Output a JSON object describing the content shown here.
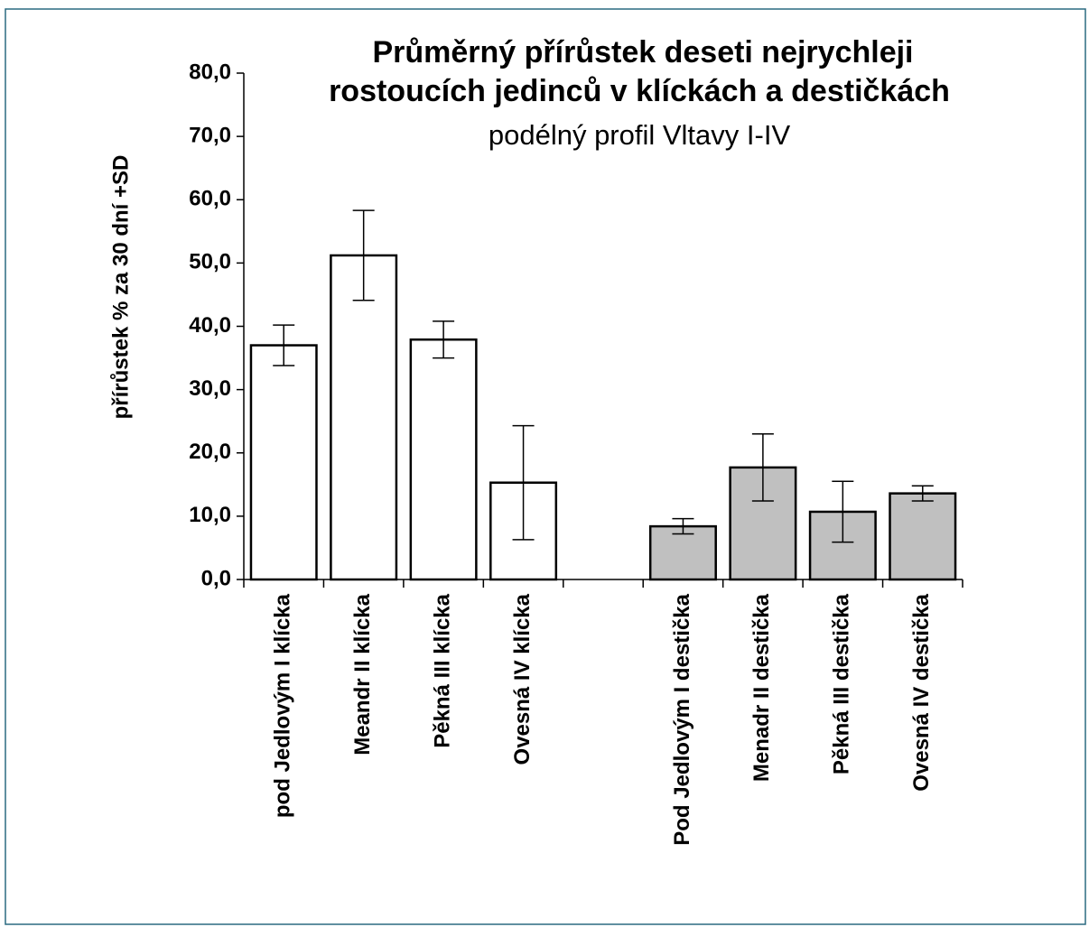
{
  "chart_data": {
    "type": "bar",
    "title": [
      "Průměrný přírůstek deseti nejrychleji",
      "rostoucích jedinců v klíckách a destičkách"
    ],
    "subtitle": "podélný profil Vltavy I-IV",
    "y_label": "přírůstek %  za 30 dní +SD",
    "categories": [
      "pod Jedlovým I klícka",
      "Meandr II  klícka",
      "Pěkná III  klícka",
      "Ovesná IV  klícka",
      null,
      "Pod Jedlovým I destička",
      "Menadr II  destička",
      "Pěkná III  destička",
      "Ovesná IV destička"
    ],
    "values": [
      37.0,
      51.2,
      37.9,
      15.3,
      null,
      8.4,
      17.7,
      10.7,
      13.6
    ],
    "errors": [
      3.2,
      7.1,
      2.9,
      9.0,
      null,
      1.2,
      5.3,
      4.8,
      1.2
    ],
    "colors": [
      "#ffffff",
      "#ffffff",
      "#ffffff",
      "#ffffff",
      null,
      "#c0c0c0",
      "#c0c0c0",
      "#c0c0c0",
      "#c0c0c0"
    ],
    "ylim": [
      0,
      80
    ],
    "yticks": [
      {
        "value": 0,
        "label": "0,0"
      },
      {
        "value": 10,
        "label": "10,0"
      },
      {
        "value": 20,
        "label": "20,0"
      },
      {
        "value": 30,
        "label": "30,0"
      },
      {
        "value": 40,
        "label": "40,0"
      },
      {
        "value": 50,
        "label": "50,0"
      },
      {
        "value": 60,
        "label": "60,0"
      },
      {
        "value": 70,
        "label": "70,0"
      },
      {
        "value": 80,
        "label": "80,0"
      }
    ]
  }
}
